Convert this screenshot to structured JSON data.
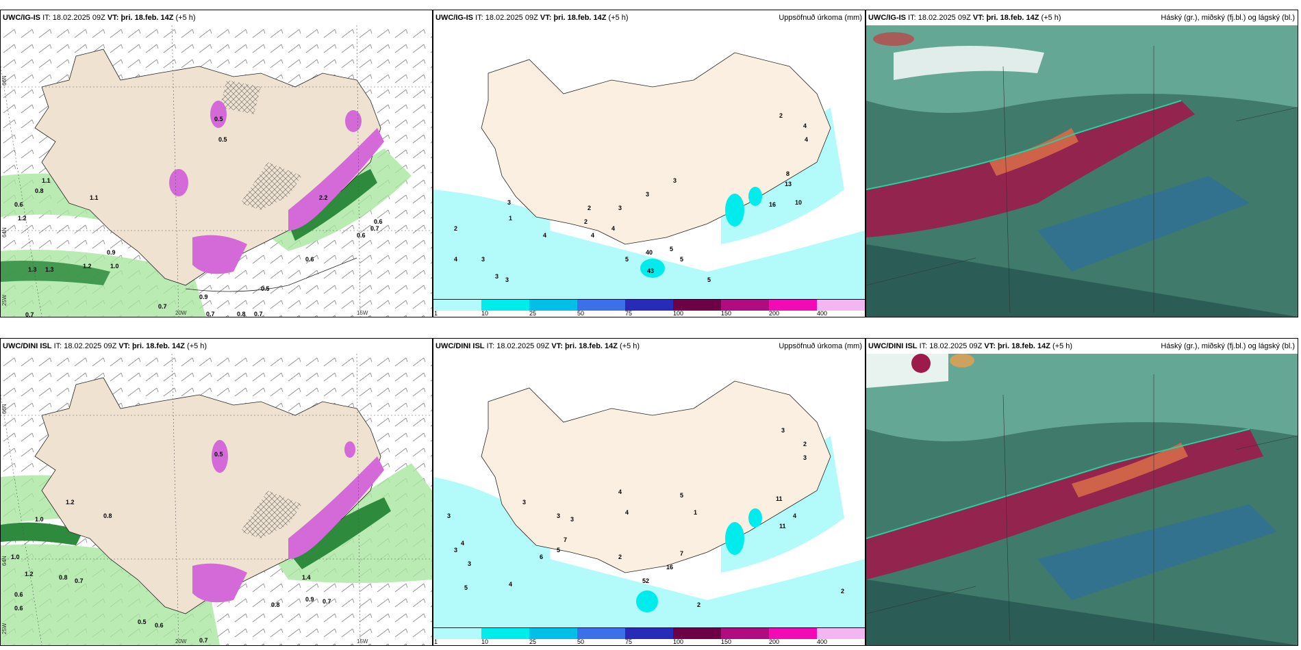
{
  "rows": [
    {
      "model": "UWC/IG-IS",
      "it_label": "IT:",
      "it": "18.02.2025 09Z",
      "vt_label": "VT:",
      "vt": "þri. 18.feb. 14Z",
      "lead": "(+5 h)",
      "wind_values": [
        "0.5",
        "0.5",
        "0.6",
        "1.3",
        "1.1",
        "0.8",
        "0.6",
        "1.2",
        "1.1",
        "0.9",
        "1.0",
        "1.2",
        "1.3",
        "0.7",
        "0.7",
        "0.5",
        "0.6",
        "0.7",
        "0.8",
        "0.6",
        "0.7",
        "0.7",
        "0.9",
        "2.2"
      ],
      "precip_values": [
        "2",
        "4",
        "4",
        "8",
        "13",
        "16",
        "10",
        "3",
        "4",
        "3",
        "2",
        "1",
        "3",
        "2",
        "4",
        "3",
        "3",
        "4",
        "5",
        "3",
        "5",
        "5",
        "5",
        "40",
        "43",
        "2",
        "4",
        "3"
      ]
    },
    {
      "model": "UWC/DINI ISL",
      "it_label": "IT:",
      "it": "18.02.2025 09Z",
      "vt_label": "VT:",
      "vt": "þri. 18.feb. 14Z",
      "lead": "(+5 h)",
      "wind_values": [
        "0.5",
        "0.6",
        "0.8",
        "1.0",
        "1.2",
        "1.0",
        "0.8",
        "0.7",
        "0.6",
        "1.2",
        "0.5",
        "0.6",
        "0.7",
        "0.8",
        "0.9",
        "0.7",
        "1.4"
      ],
      "precip_values": [
        "3",
        "2",
        "3",
        "11",
        "11",
        "4",
        "3",
        "4",
        "4",
        "3",
        "3",
        "5",
        "4",
        "7",
        "6",
        "5",
        "2",
        "16",
        "7",
        "52",
        "2",
        "2",
        "3",
        "3",
        "3",
        "5",
        "1",
        "4"
      ]
    }
  ],
  "precip_title": "Uppsöfnuð úrkoma (mm)",
  "cloud_title": "Háský (gr.), miðský (fj.bl.) og lágský (bl.)",
  "axis_labels": {
    "lat_66": "66N",
    "lat_64": "64N",
    "lon_25": "25W",
    "lon_20": "20W",
    "lon_15": "15W"
  },
  "legend": {
    "labels": [
      "1",
      "10",
      "25",
      "50",
      "75",
      "100",
      "150",
      "200",
      "400"
    ],
    "colors": [
      "#b3fbfb",
      "#00ecec",
      "#00c0e8",
      "#3c6fe8",
      "#2a2ab8",
      "#6e0048",
      "#b00c80",
      "#f20ab4",
      "#f3b6f3"
    ]
  }
}
